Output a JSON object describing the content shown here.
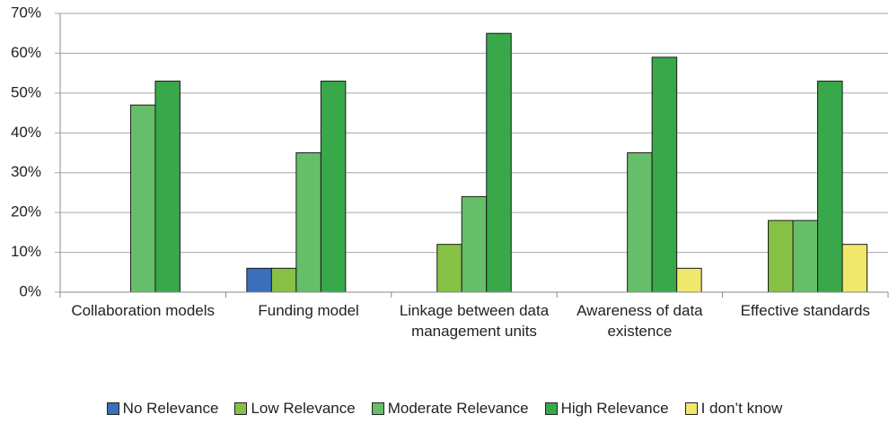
{
  "chart_data": {
    "type": "bar",
    "categories": [
      "Collaboration models",
      "Funding model",
      "Linkage between data management units",
      "Awareness of data existence",
      "Effective standards"
    ],
    "series": [
      {
        "name": "No Relevance",
        "color": "#3a6fba",
        "values": [
          0,
          6,
          0,
          0,
          0
        ]
      },
      {
        "name": "Low Relevance",
        "color": "#86c145",
        "values": [
          0,
          6,
          12,
          0,
          18
        ]
      },
      {
        "name": "Moderate Relevance",
        "color": "#66be6a",
        "values": [
          47,
          35,
          24,
          35,
          18
        ]
      },
      {
        "name": "High Relevance",
        "color": "#38a84a",
        "values": [
          53,
          53,
          65,
          59,
          53
        ]
      },
      {
        "name": "I don’t know",
        "color": "#efe86a",
        "values": [
          0,
          0,
          0,
          6,
          12
        ]
      }
    ],
    "ylim": [
      0,
      70
    ],
    "yticks": [
      {
        "value": 0,
        "label": "0%"
      },
      {
        "value": 10,
        "label": "10%"
      },
      {
        "value": 20,
        "label": "20%"
      },
      {
        "value": 30,
        "label": "30%"
      },
      {
        "value": 40,
        "label": "40%"
      },
      {
        "value": 50,
        "label": "50%"
      },
      {
        "value": 60,
        "label": "60%"
      },
      {
        "value": 70,
        "label": "70%"
      }
    ],
    "grid": true
  }
}
